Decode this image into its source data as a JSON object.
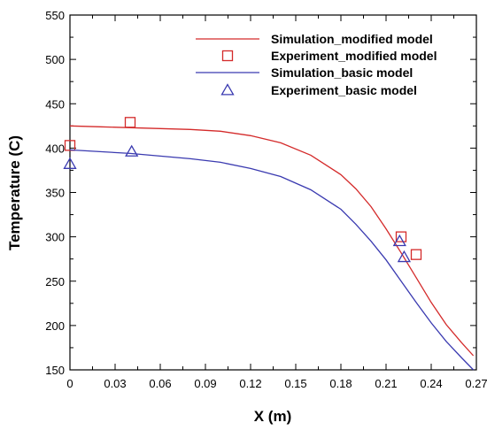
{
  "chart_data": {
    "type": "line",
    "title": "",
    "xlabel": "X (m)",
    "ylabel": "Temperature (C)",
    "xlim": [
      0,
      0.27
    ],
    "ylim": [
      150,
      550
    ],
    "xticks": [
      "0",
      "0.03",
      "0.06",
      "0.09",
      "0.12",
      "0.15",
      "0.18",
      "0.21",
      "0.24",
      "0.27"
    ],
    "yticks": [
      "150",
      "200",
      "250",
      "300",
      "350",
      "400",
      "450",
      "500",
      "550"
    ],
    "legend_position": "top-right",
    "grid": false,
    "series": [
      {
        "name": "Simulation_modified model",
        "kind": "line",
        "color": "#d42a2a",
        "x": [
          0,
          0.02,
          0.04,
          0.06,
          0.08,
          0.1,
          0.12,
          0.14,
          0.16,
          0.18,
          0.19,
          0.2,
          0.21,
          0.22,
          0.23,
          0.24,
          0.25,
          0.26,
          0.268
        ],
        "y": [
          425,
          424,
          423,
          422,
          421,
          419,
          414,
          406,
          392,
          370,
          354,
          334,
          309,
          282,
          254,
          226,
          201,
          181,
          166
        ]
      },
      {
        "name": "Experiment_modified model",
        "kind": "marker",
        "marker": "square",
        "color": "#d42a2a",
        "x": [
          0,
          0.04,
          0.22,
          0.23
        ],
        "y": [
          403,
          429,
          300,
          280
        ]
      },
      {
        "name": "Simulation_basic model",
        "kind": "line",
        "color": "#3a3ab0",
        "x": [
          0,
          0.02,
          0.04,
          0.06,
          0.08,
          0.1,
          0.12,
          0.14,
          0.16,
          0.18,
          0.19,
          0.2,
          0.21,
          0.22,
          0.23,
          0.24,
          0.25,
          0.26,
          0.268
        ],
        "y": [
          398,
          396,
          394,
          391,
          388,
          384,
          377,
          368,
          353,
          331,
          314,
          295,
          274,
          250,
          226,
          203,
          182,
          164,
          150
        ]
      },
      {
        "name": "Experiment_basic model",
        "kind": "marker",
        "marker": "triangle",
        "color": "#3a3ab0",
        "x": [
          0,
          0.041,
          0.219,
          0.222
        ],
        "y": [
          382,
          396,
          295,
          277
        ]
      }
    ]
  }
}
